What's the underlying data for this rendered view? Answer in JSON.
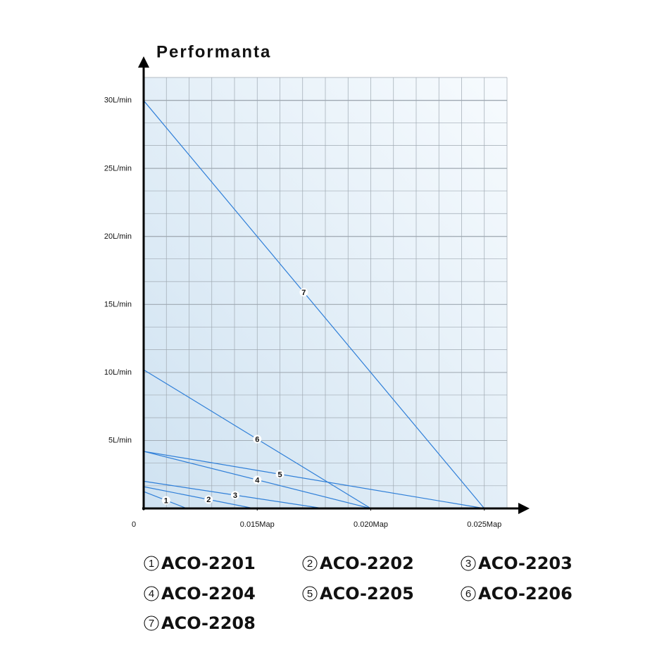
{
  "chart_data": {
    "type": "line",
    "title": "Performanta",
    "xlim": [
      0.01,
      0.026
    ],
    "ylim": [
      0,
      31.7
    ],
    "xticks": [
      {
        "value": 0.01,
        "label": "0"
      },
      {
        "value": 0.015,
        "label": "0.015Map"
      },
      {
        "value": 0.02,
        "label": "0.020Map"
      },
      {
        "value": 0.025,
        "label": "0.025Map"
      }
    ],
    "yticks": [
      {
        "value": 5,
        "label": "5L/min"
      },
      {
        "value": 10,
        "label": "10L/min"
      },
      {
        "value": 15,
        "label": "15L/min"
      },
      {
        "value": 20,
        "label": "20L/min"
      },
      {
        "value": 25,
        "label": "25L/min"
      },
      {
        "value": 30,
        "label": "30L/min"
      }
    ],
    "grid": true,
    "series": [
      {
        "name": "ACO-2201",
        "marker": "1",
        "color": "#2f7fd8",
        "x": [
          0.01,
          0.0119
        ],
        "values": [
          1.24,
          0
        ]
      },
      {
        "name": "ACO-2202",
        "marker": "2",
        "color": "#2f7fd8",
        "x": [
          0.01,
          0.01485
        ],
        "values": [
          1.6,
          0
        ]
      },
      {
        "name": "ACO-2203",
        "marker": "3",
        "color": "#2f7fd8",
        "x": [
          0.01,
          0.0179
        ],
        "values": [
          2.0,
          0
        ]
      },
      {
        "name": "ACO-2204",
        "marker": "4",
        "color": "#2f7fd8",
        "x": [
          0.01,
          0.02
        ],
        "values": [
          4.2,
          0
        ]
      },
      {
        "name": "ACO-2205",
        "marker": "5",
        "color": "#2f7fd8",
        "x": [
          0.01,
          0.025
        ],
        "values": [
          4.2,
          0
        ]
      },
      {
        "name": "ACO-2206",
        "marker": "6",
        "color": "#2f7fd8",
        "x": [
          0.01,
          0.02
        ],
        "values": [
          10.2,
          0
        ]
      },
      {
        "name": "ACO-2208",
        "marker": "7",
        "color": "#2f7fd8",
        "x": [
          0.01,
          0.025
        ],
        "values": [
          30,
          0
        ]
      }
    ]
  }
}
